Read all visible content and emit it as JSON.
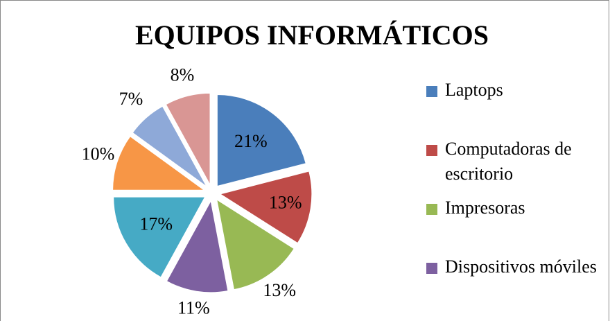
{
  "chart_data": {
    "type": "pie",
    "title": "EQUIPOS INFORMÁTICOS",
    "categories": [
      "Laptops",
      "Computadoras de escritorio",
      "Impresoras",
      "Dispositivos móviles",
      null,
      null,
      null,
      null
    ],
    "values": [
      21,
      13,
      13,
      11,
      17,
      10,
      7,
      8
    ],
    "value_labels": [
      "21%",
      "13%",
      "13%",
      "11%",
      "17%",
      "10%",
      "7%",
      "8%"
    ],
    "colors": [
      "#4a7ebb",
      "#be4b48",
      "#98b954",
      "#7d60a0",
      "#46aac5",
      "#f79646",
      "#8ea9d8",
      "#d99694"
    ],
    "legend": "right"
  }
}
